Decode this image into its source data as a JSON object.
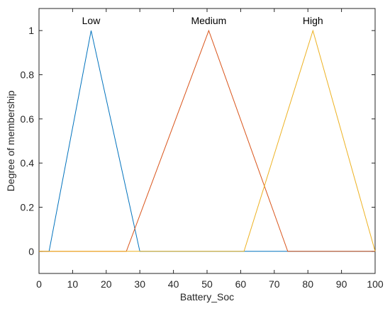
{
  "chart_data": {
    "type": "line",
    "xlabel": "Battery_Soc",
    "ylabel": "Degree of membership",
    "xlim": [
      0,
      100
    ],
    "ylim": [
      -0.1,
      1.1
    ],
    "xticks": [
      0,
      10,
      20,
      30,
      40,
      50,
      60,
      70,
      80,
      90,
      100
    ],
    "yticks": [
      0,
      0.2,
      0.4,
      0.6,
      0.8,
      1
    ],
    "ytick_labels": [
      "0",
      "0.2",
      "0.4",
      "0.6",
      "0.8",
      "1"
    ],
    "grid": false,
    "series": [
      {
        "name": "Low",
        "color": "#0072BD",
        "x": [
          0,
          3,
          15.5,
          30,
          100
        ],
        "y": [
          0,
          0,
          1,
          0,
          0
        ]
      },
      {
        "name": "Medium",
        "color": "#D95319",
        "x": [
          0,
          26,
          50.5,
          74,
          100
        ],
        "y": [
          0,
          0,
          1,
          0,
          0
        ]
      },
      {
        "name": "High",
        "color": "#EDB120",
        "x": [
          0,
          61,
          81.5,
          100
        ],
        "y": [
          0,
          0,
          1,
          0
        ]
      }
    ]
  }
}
